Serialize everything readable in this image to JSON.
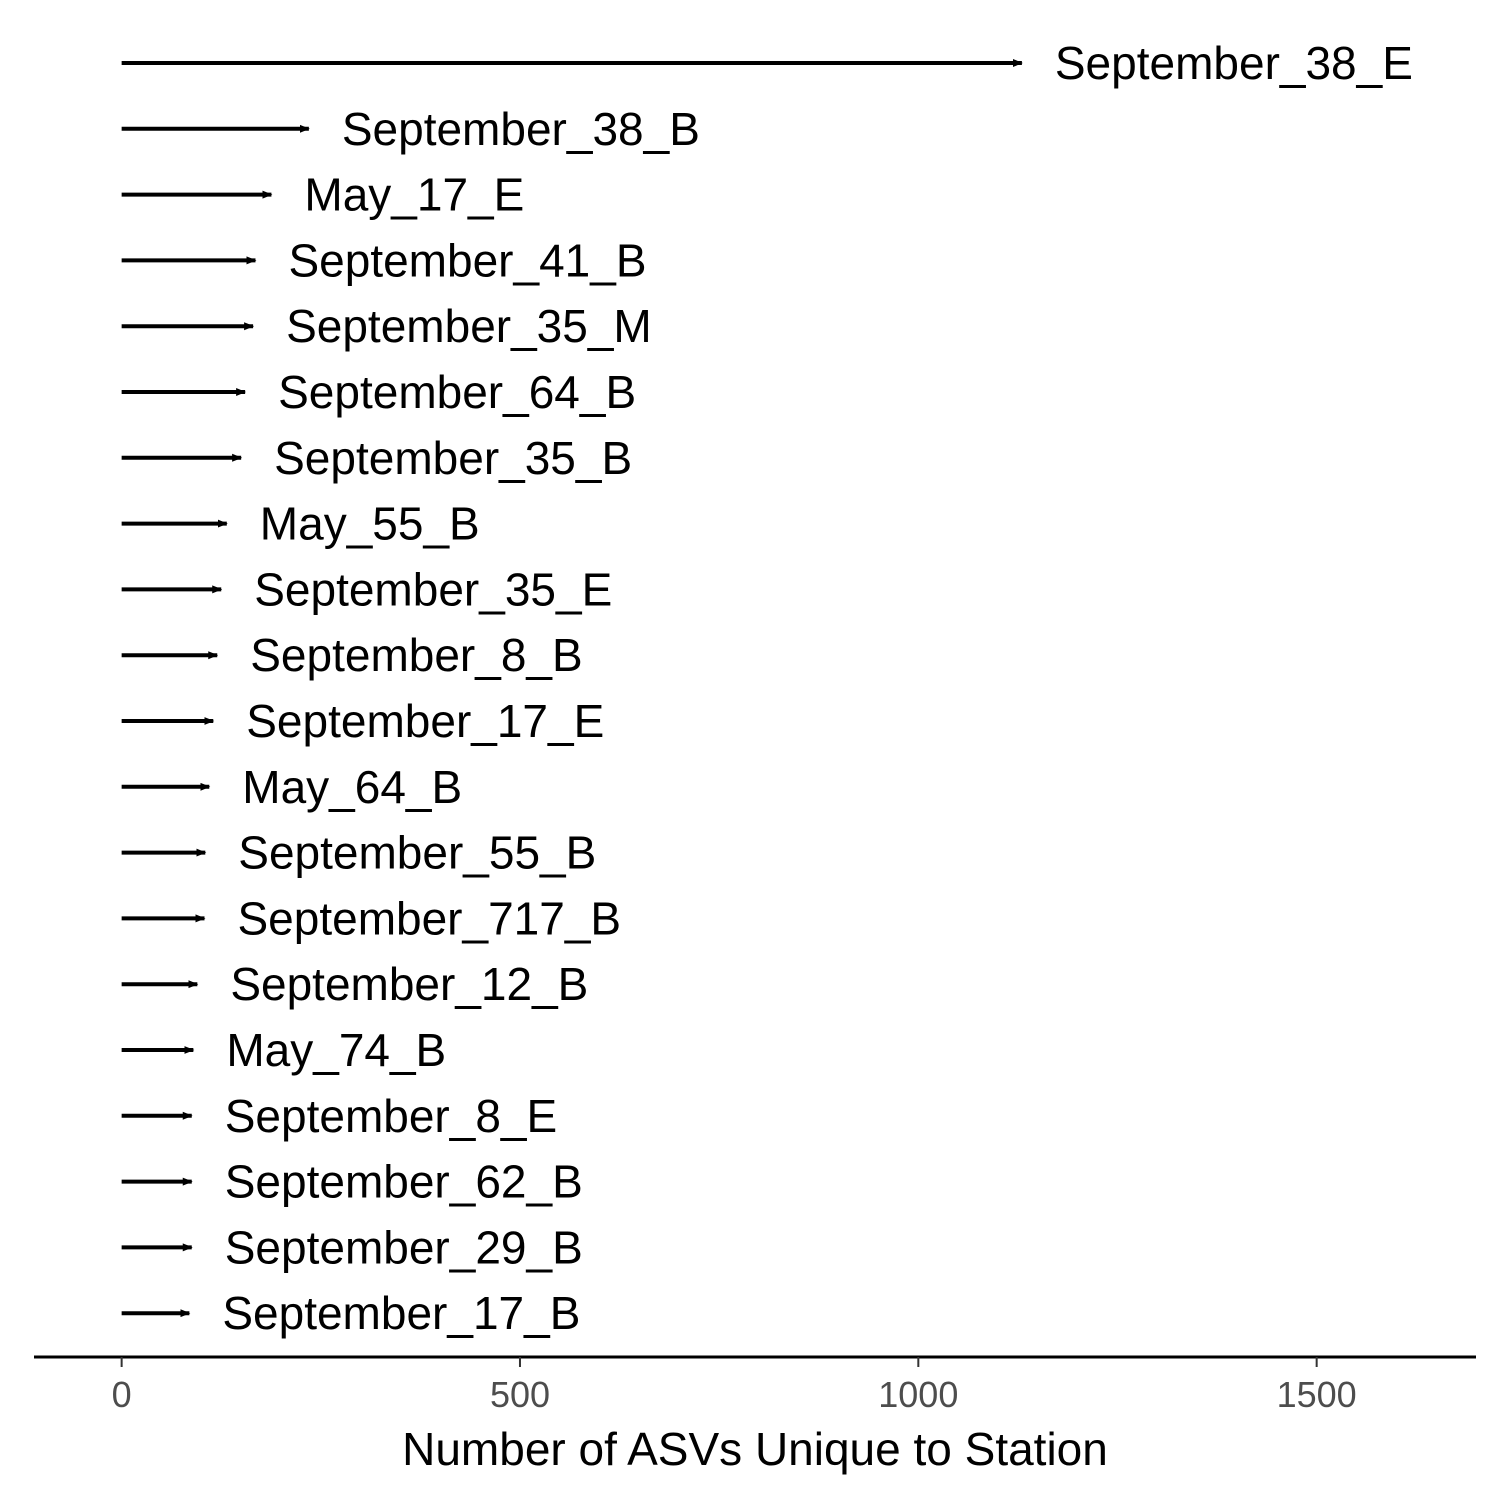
{
  "chart_data": {
    "type": "bar",
    "orientation": "horizontal",
    "mark": "arrow",
    "title": "",
    "xlabel": "Number of ASVs Unique to Station",
    "ylabel": "",
    "xlim": [
      -110,
      1700
    ],
    "xticks": [
      0,
      500,
      1000,
      1500
    ],
    "grid": false,
    "legend": "none",
    "color": "#000000",
    "categories": [
      "September_38_E",
      "September_38_B",
      "May_17_E",
      "September_41_B",
      "September_35_M",
      "September_64_B",
      "September_35_B",
      "May_55_B",
      "September_35_E",
      "September_8_B",
      "September_17_E",
      "May_64_B",
      "September_55_B",
      "September_717_B",
      "September_12_B",
      "May_74_B",
      "September_8_E",
      "September_62_B",
      "September_29_B",
      "September_17_B"
    ],
    "values": [
      1130,
      235,
      188,
      168,
      165,
      155,
      150,
      132,
      125,
      120,
      115,
      110,
      105,
      104,
      95,
      90,
      88,
      88,
      88,
      85
    ]
  }
}
